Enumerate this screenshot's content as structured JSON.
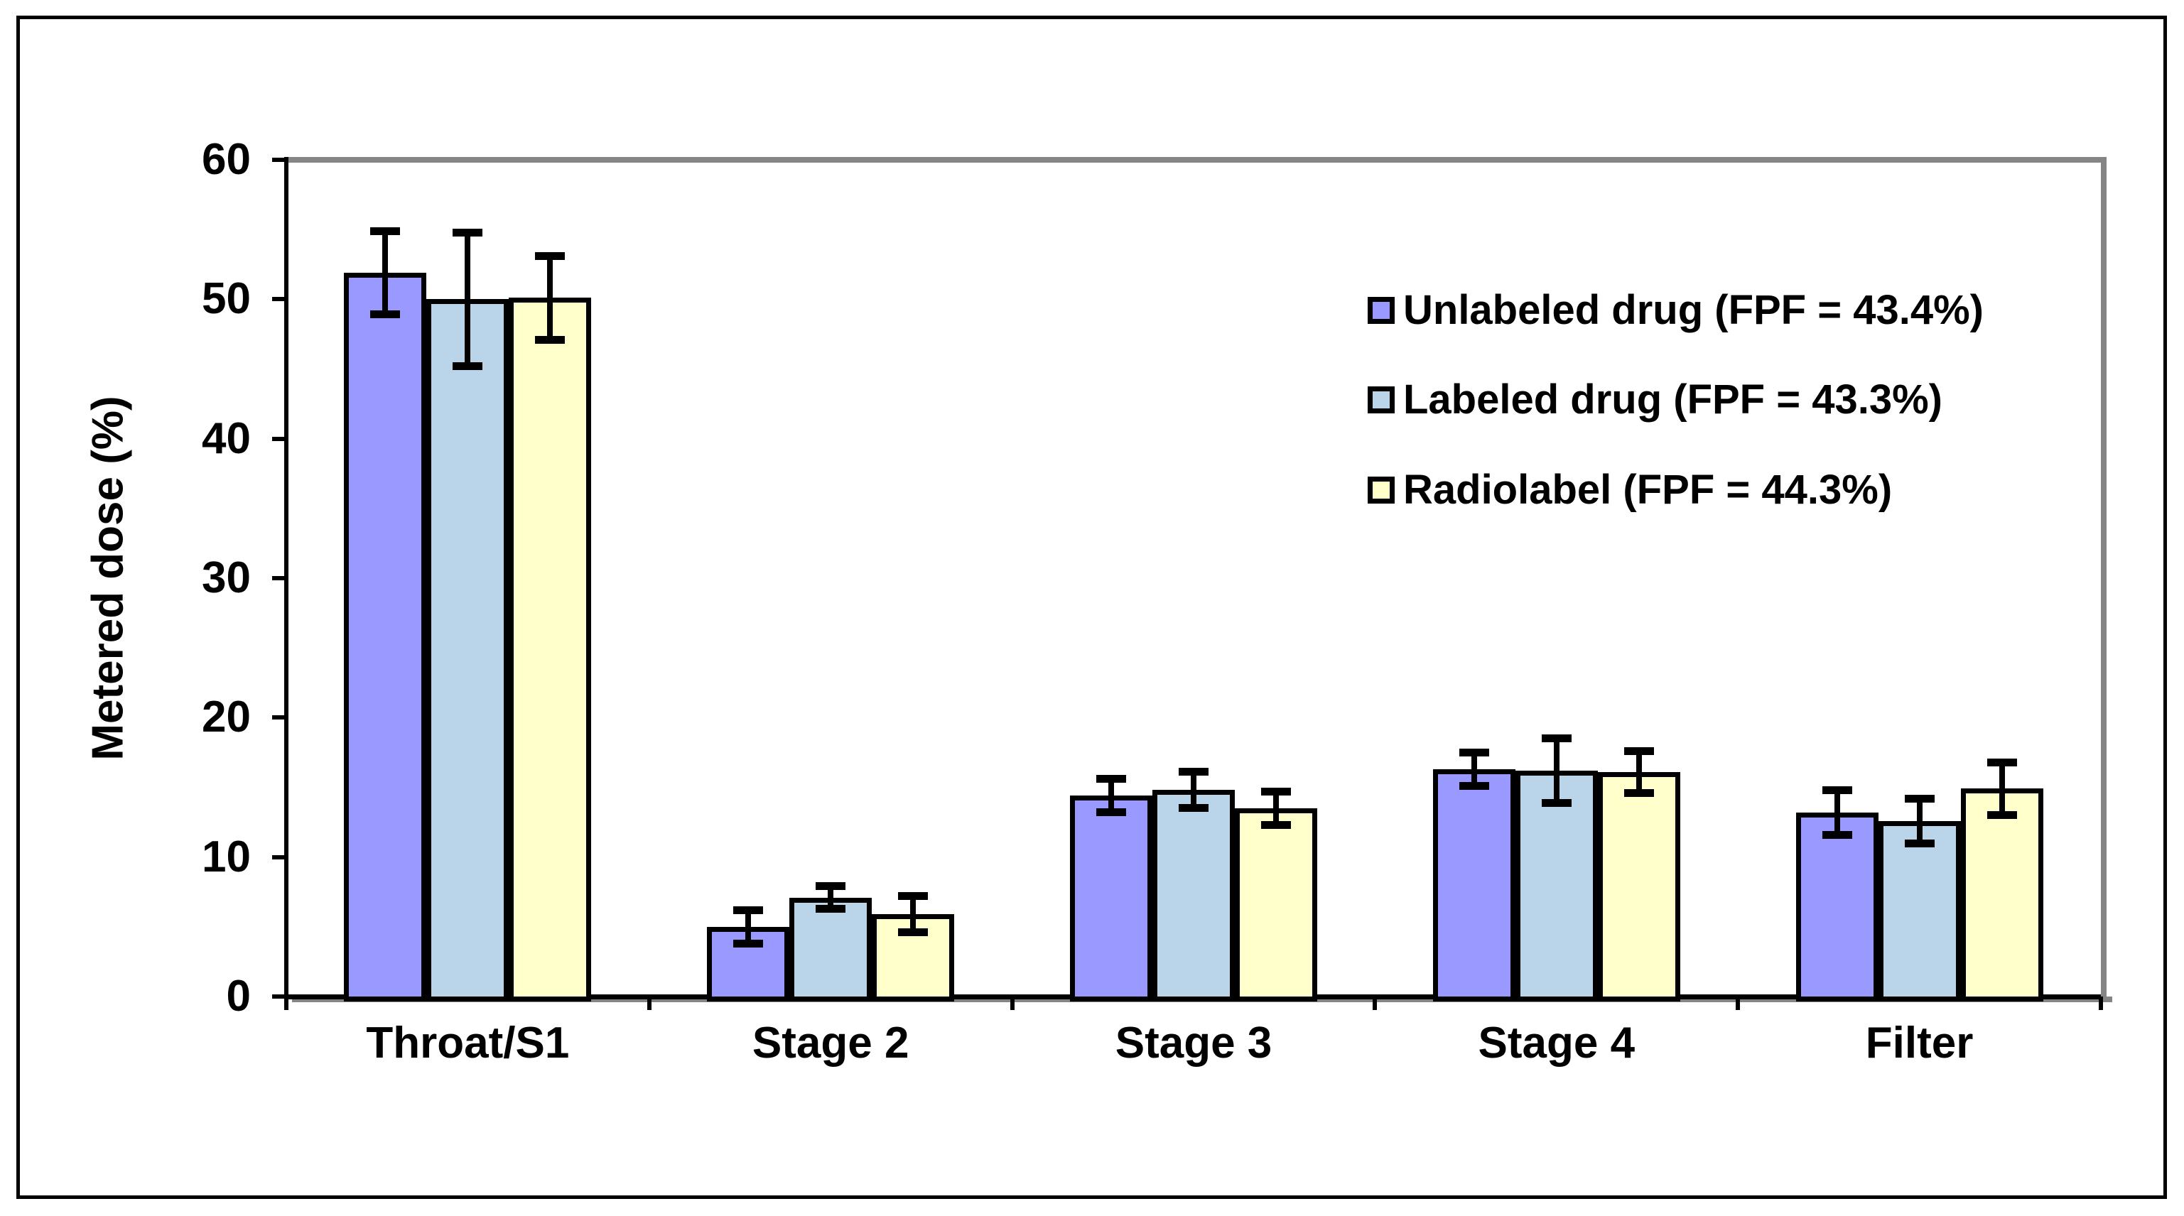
{
  "figure": {
    "y_axis_title": "Metered dose (%)"
  },
  "chart_data": {
    "type": "bar",
    "title": "",
    "xlabel": "",
    "ylabel": "Metered dose (%)",
    "ylim": [
      0,
      60
    ],
    "y_tick_step": 10,
    "y_ticks": [
      0,
      10,
      20,
      30,
      40,
      50,
      60
    ],
    "grid": "off",
    "legend_position": "inside-upper-right",
    "error_bars": true,
    "categories": [
      "Throat/S1",
      "Stage 2",
      "Stage 3",
      "Stage 4",
      "Filter"
    ],
    "series": [
      {
        "name": "Unlabeled drug (FPF = 43.4%)",
        "color": "#9999FF",
        "values": [
          51.9,
          5.0,
          14.4,
          16.3,
          13.2
        ],
        "errors": [
          3.0,
          1.2,
          1.2,
          1.2,
          1.6
        ]
      },
      {
        "name": "Labeled drug (FPF = 43.3%)",
        "color": "#BAD5EA",
        "values": [
          50.0,
          7.1,
          14.8,
          16.2,
          12.6
        ],
        "errors": [
          4.8,
          0.8,
          1.3,
          2.3,
          1.6
        ]
      },
      {
        "name": "Radiolabel (FPF = 44.3%)",
        "color": "#FFFFCC",
        "values": [
          50.1,
          5.9,
          13.5,
          16.1,
          14.9
        ],
        "errors": [
          3.0,
          1.3,
          1.2,
          1.5,
          1.9
        ]
      }
    ],
    "colors": {
      "axis": "#000000",
      "plot_border_grey": "#858585",
      "background": "#FFFFFF"
    }
  }
}
